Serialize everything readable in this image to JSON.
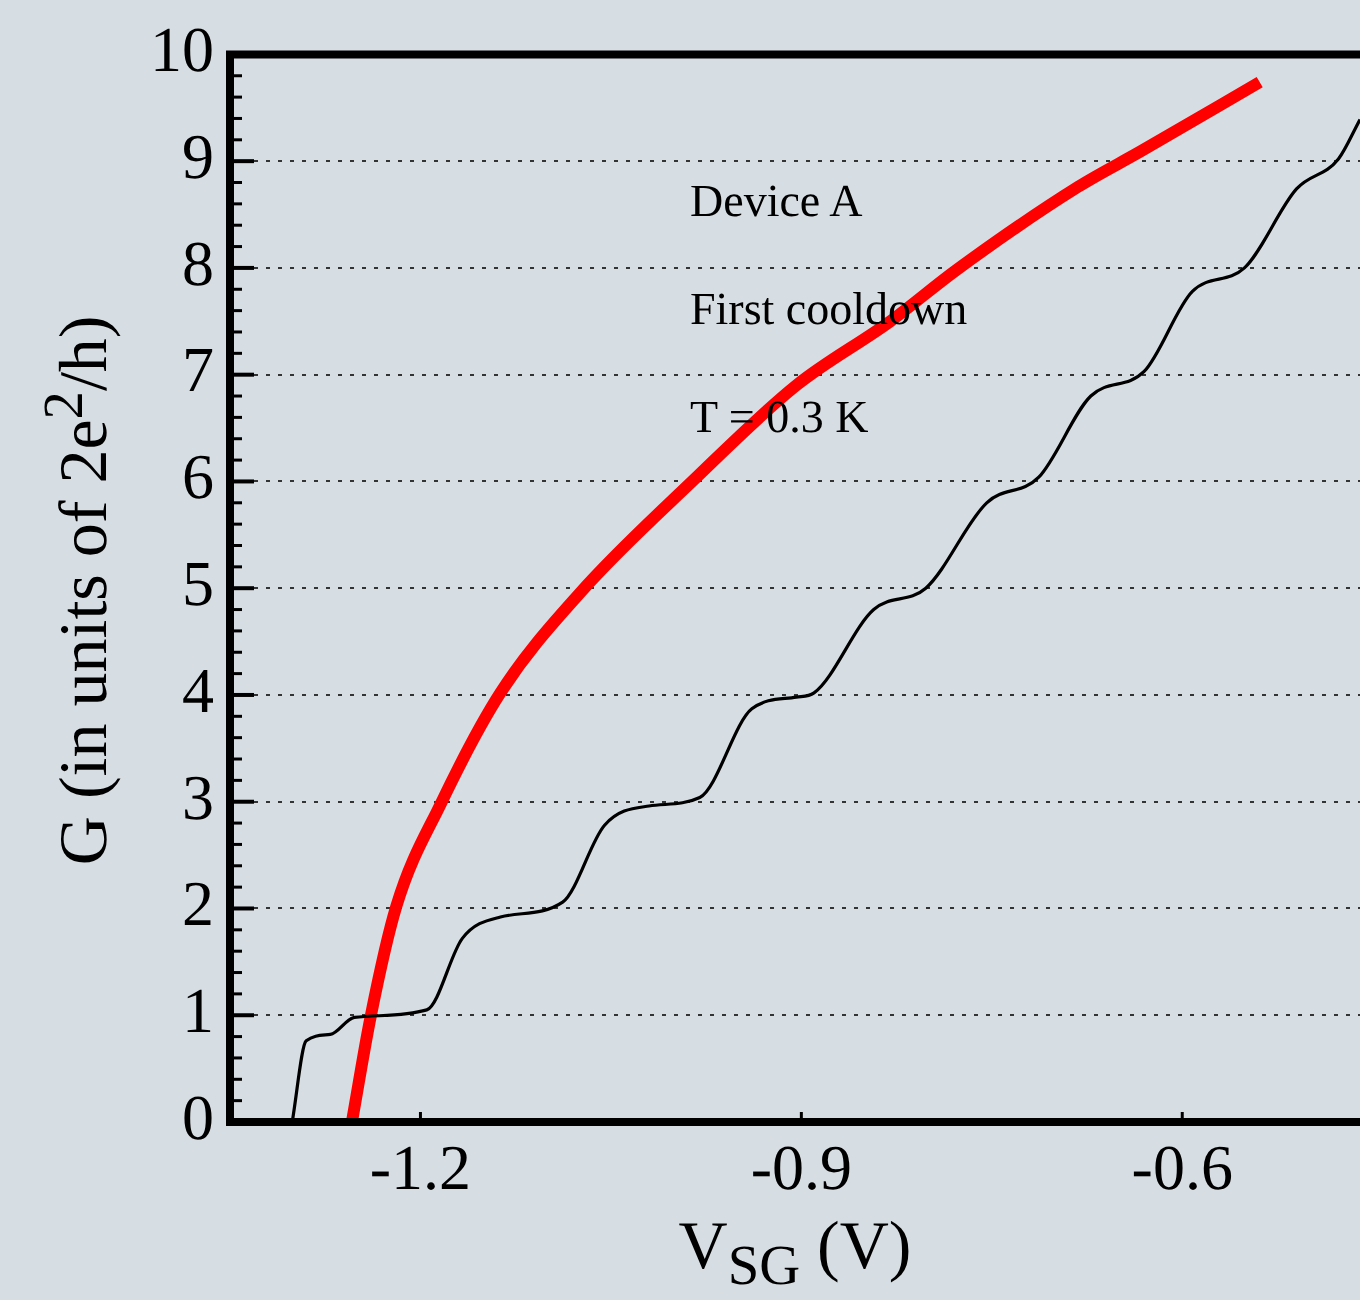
{
  "chart_data": {
    "type": "line",
    "xlabel": "V$_{SG}$ (V)",
    "ylabel": "G (in units of 2e$^{2}$/h)",
    "annotations": [
      "Device A",
      "First cooldown",
      "T = 0.3 K"
    ],
    "xlim": [
      -1.35,
      -0.46
    ],
    "xticks": [
      -1.2,
      -0.9,
      -0.6
    ],
    "ylim": [
      0,
      10
    ],
    "yticks": [
      0,
      1,
      2,
      3,
      4,
      5,
      6,
      7,
      8,
      9,
      10
    ],
    "grid": "y",
    "legend": false,
    "marker": "none",
    "line_style": "solid",
    "series": [
      {
        "color": "#000000",
        "x": [
          -1.301,
          -1.29,
          -1.271,
          -1.252,
          -1.195,
          -1.167,
          -1.137,
          -1.088,
          -1.055,
          -1.02,
          -0.98,
          -0.939,
          -0.904,
          -0.89,
          -0.843,
          -0.802,
          -0.754,
          -0.713,
          -0.672,
          -0.63,
          -0.592,
          -0.551,
          -0.51,
          -0.477,
          -0.46
        ],
        "values": [
          0,
          0.76,
          0.82,
          0.98,
          1.05,
          1.72,
          1.92,
          2.06,
          2.78,
          2.96,
          3.04,
          3.87,
          3.98,
          4.02,
          4.8,
          5.0,
          5.8,
          6.04,
          6.8,
          7.03,
          7.78,
          8.0,
          8.74,
          9.02,
          9.39
        ]
      },
      {
        "color": "#ff0000",
        "x": [
          -1.254,
          -1.239,
          -1.219,
          -1.184,
          -1.137,
          -1.074,
          -0.986,
          -0.904,
          -0.83,
          -0.778,
          -0.682,
          -0.633,
          -0.539
        ],
        "values": [
          0,
          1.0,
          2.02,
          2.98,
          4.02,
          4.96,
          6.0,
          6.9,
          7.5,
          7.98,
          8.76,
          9.09,
          9.74
        ]
      }
    ]
  }
}
